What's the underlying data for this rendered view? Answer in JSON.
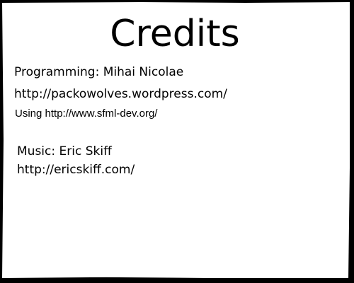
{
  "screen": {
    "title": "Credits",
    "programming_credit": "Programming: Mihai Nicolae",
    "programmer_url": "http://packowolves.wordpress.com/",
    "library_credit": "Using http://www.sfml-dev.org/",
    "music_credit": "Music: Eric Skiff",
    "musician_url": "http://ericskiff.com/"
  },
  "colors": {
    "background": "#000000",
    "panel": "#ffffff",
    "text": "#000000"
  }
}
